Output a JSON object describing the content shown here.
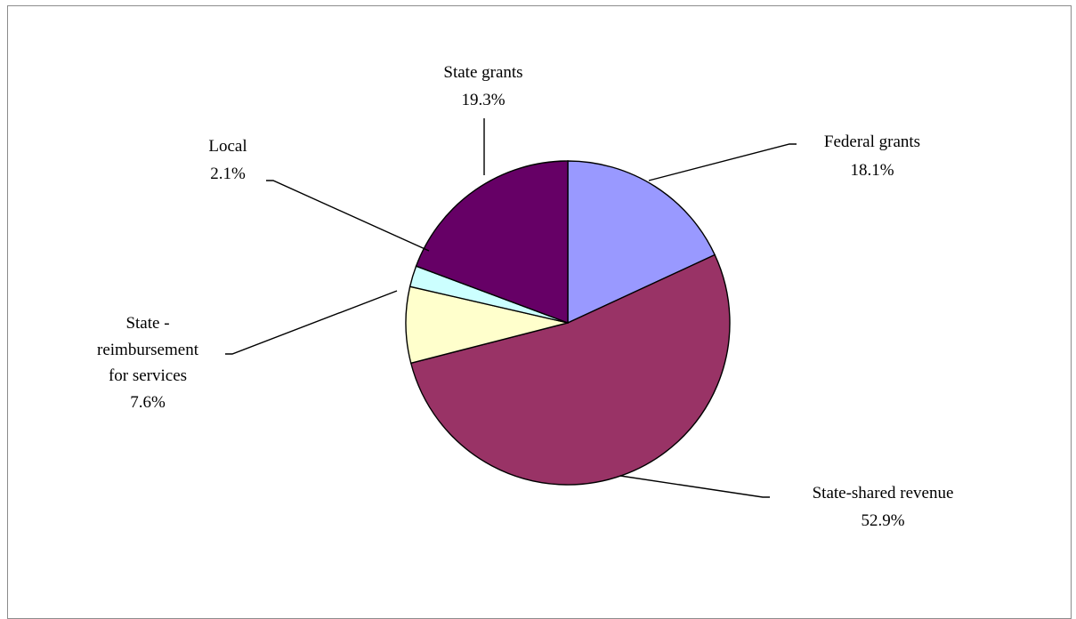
{
  "chart_data": {
    "type": "pie",
    "title": "",
    "slices": [
      {
        "category": "Federal grants",
        "percent_label": "18.1%",
        "value": 18.1,
        "color": "#9999FF"
      },
      {
        "category": "State-shared revenue",
        "percent_label": "52.9%",
        "value": 52.9,
        "color": "#993366"
      },
      {
        "category": "State - reimbursement for services",
        "percent_label": "7.6%",
        "value": 7.6,
        "color": "#FFFFCC"
      },
      {
        "category": "Local",
        "percent_label": "2.1%",
        "value": 2.1,
        "color": "#CCFFFF"
      },
      {
        "category": "State grants",
        "percent_label": "19.3%",
        "value": 19.3,
        "color": "#660066"
      }
    ]
  }
}
